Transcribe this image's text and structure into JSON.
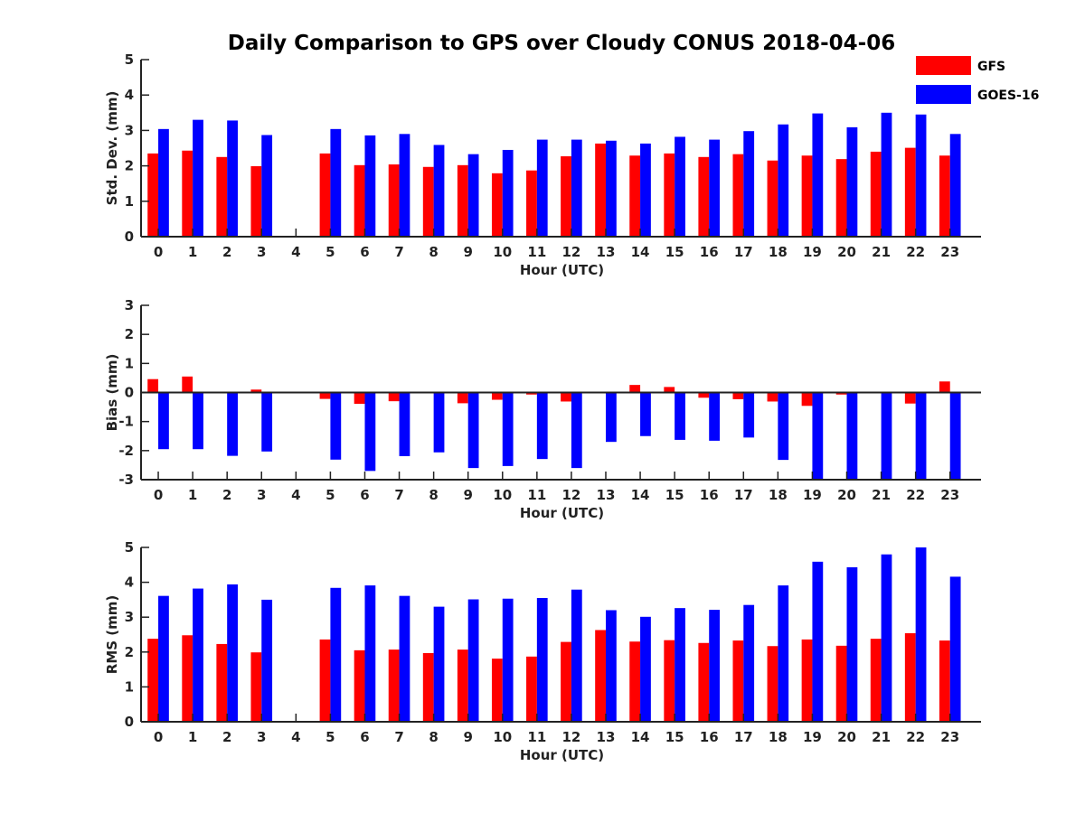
{
  "title": "Daily Comparison to GPS over Cloudy CONUS 2018-04-06",
  "colors": {
    "gfs": "#ff0000",
    "goes": "#0000ff",
    "axis": "#222222"
  },
  "chart_data": [
    {
      "type": "bar",
      "title": "Daily Comparison to GPS over Cloudy CONUS 2018-04-06",
      "xlabel": "Hour (UTC)",
      "ylabel": "Std. Dev. (mm)",
      "ylim": [
        0,
        5
      ],
      "yticks": [
        0,
        1,
        2,
        3,
        4,
        5
      ],
      "grid": false,
      "legend": "top-right",
      "categories": [
        "0",
        "1",
        "2",
        "3",
        "4",
        "5",
        "6",
        "7",
        "8",
        "9",
        "10",
        "11",
        "12",
        "13",
        "14",
        "15",
        "16",
        "17",
        "18",
        "19",
        "20",
        "21",
        "22",
        "23"
      ],
      "series": [
        {
          "name": "GFS",
          "color": "#ff0000",
          "values": [
            2.35,
            2.43,
            2.25,
            1.99,
            null,
            2.35,
            2.02,
            2.04,
            1.97,
            2.02,
            1.79,
            1.87,
            2.27,
            2.63,
            2.29,
            2.35,
            2.25,
            2.33,
            2.15,
            2.29,
            2.19,
            2.4,
            2.51,
            2.29
          ]
        },
        {
          "name": "GOES-16",
          "color": "#0000ff",
          "values": [
            3.04,
            3.3,
            3.28,
            2.87,
            null,
            3.04,
            2.86,
            2.9,
            2.59,
            2.33,
            2.45,
            2.74,
            2.74,
            2.71,
            2.63,
            2.82,
            2.74,
            2.98,
            3.17,
            3.48,
            3.09,
            3.5,
            3.45,
            2.9
          ]
        }
      ]
    },
    {
      "type": "bar",
      "xlabel": "Hour (UTC)",
      "ylabel": "Bias (mm)",
      "ylim": [
        -3,
        3
      ],
      "yticks": [
        -3,
        -2,
        -1,
        0,
        1,
        2,
        3
      ],
      "grid": false,
      "categories": [
        "0",
        "1",
        "2",
        "3",
        "4",
        "5",
        "6",
        "7",
        "8",
        "9",
        "10",
        "11",
        "12",
        "13",
        "14",
        "15",
        "16",
        "17",
        "18",
        "19",
        "20",
        "21",
        "22",
        "23"
      ],
      "series": [
        {
          "name": "GFS",
          "color": "#ff0000",
          "values": [
            0.46,
            0.55,
            0.0,
            0.1,
            null,
            -0.22,
            -0.39,
            -0.3,
            0.0,
            -0.37,
            -0.25,
            -0.07,
            -0.31,
            0.0,
            0.26,
            0.19,
            -0.18,
            -0.23,
            -0.31,
            -0.46,
            -0.07,
            0.0,
            -0.38,
            0.38
          ]
        },
        {
          "name": "GOES-16",
          "color": "#0000ff",
          "values": [
            -1.95,
            -1.95,
            -2.18,
            -2.03,
            null,
            -2.31,
            -2.7,
            -2.19,
            -2.06,
            -2.6,
            -2.53,
            -2.29,
            -2.6,
            -1.7,
            -1.5,
            -1.63,
            -1.66,
            -1.55,
            -2.32,
            -3.0,
            -3.0,
            -3.0,
            -3.0,
            -2.97
          ]
        }
      ]
    },
    {
      "type": "bar",
      "xlabel": "Hour (UTC)",
      "ylabel": "RMS (mm)",
      "ylim": [
        0,
        5
      ],
      "yticks": [
        0,
        1,
        2,
        3,
        4,
        5
      ],
      "grid": false,
      "categories": [
        "0",
        "1",
        "2",
        "3",
        "4",
        "5",
        "6",
        "7",
        "8",
        "9",
        "10",
        "11",
        "12",
        "13",
        "14",
        "15",
        "16",
        "17",
        "18",
        "19",
        "20",
        "21",
        "22",
        "23"
      ],
      "series": [
        {
          "name": "GFS",
          "color": "#ff0000",
          "values": [
            2.38,
            2.48,
            2.23,
            1.99,
            null,
            2.36,
            2.05,
            2.07,
            1.97,
            2.07,
            1.81,
            1.87,
            2.29,
            2.63,
            2.3,
            2.34,
            2.26,
            2.33,
            2.17,
            2.36,
            2.18,
            2.38,
            2.54,
            2.33
          ]
        },
        {
          "name": "GOES-16",
          "color": "#0000ff",
          "values": [
            3.61,
            3.82,
            3.94,
            3.5,
            null,
            3.84,
            3.91,
            3.61,
            3.3,
            3.51,
            3.53,
            3.55,
            3.79,
            3.2,
            3.01,
            3.26,
            3.21,
            3.35,
            3.91,
            4.59,
            4.43,
            4.8,
            5.0,
            4.16
          ]
        }
      ]
    }
  ]
}
